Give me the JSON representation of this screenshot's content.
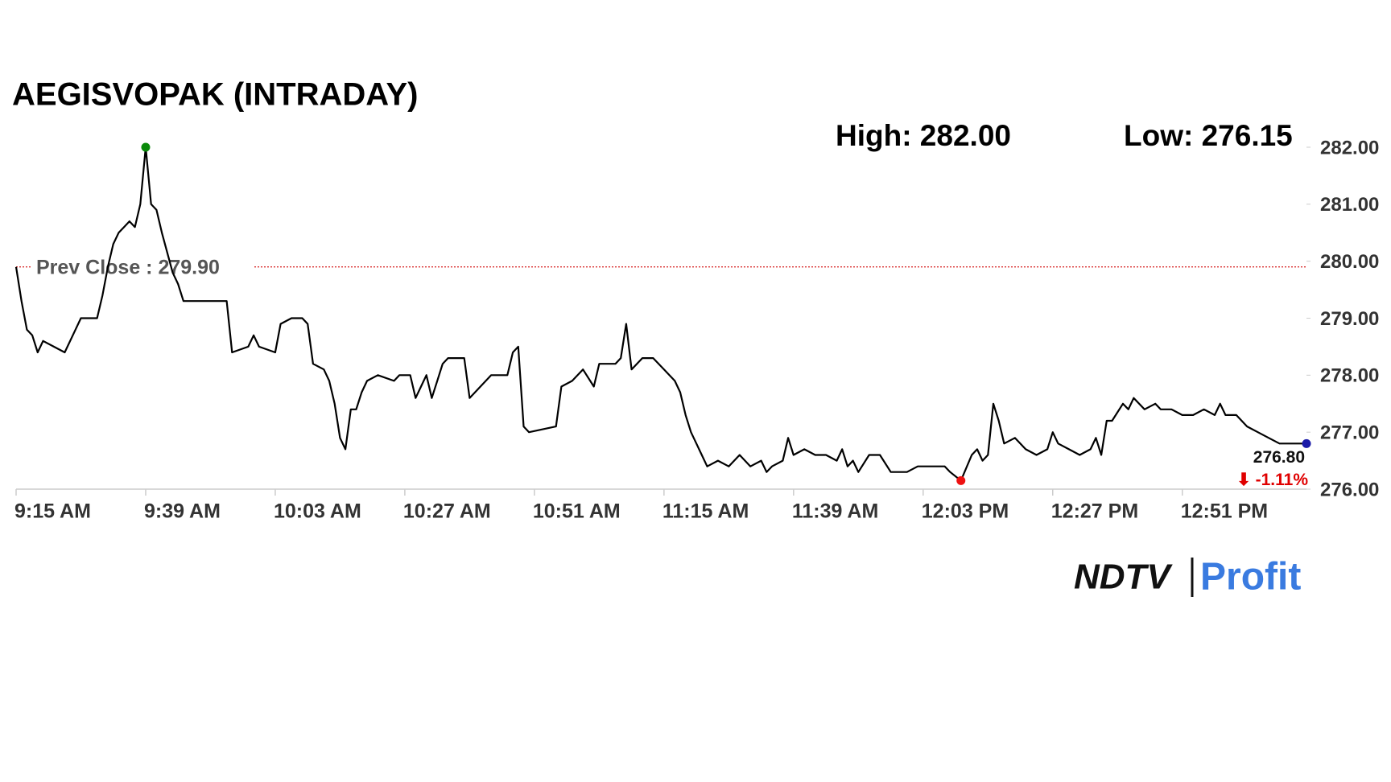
{
  "chart_data": {
    "type": "line",
    "title": "AEGISVOPAK (INTRADAY)",
    "high_label": "High: 282.00",
    "low_label": "Low: 276.15",
    "prev_close": 279.9,
    "prev_close_label": "Prev Close : 279.90",
    "prev_close_color": "#d62020",
    "last_label": "276.80",
    "change_label": "⬇ -1.11%",
    "change_color": "#e00000",
    "high_color": "#0a8a0a",
    "low_color": "#ee1111",
    "last_color": "#1a1aa8",
    "x": [
      "9:15 AM",
      "9:16 AM",
      "9:17 AM",
      "9:18 AM",
      "9:19 AM",
      "9:20 AM",
      "9:22 AM",
      "9:24 AM",
      "9:26 AM",
      "9:27 AM",
      "9:30 AM",
      "9:31 AM",
      "9:32 AM",
      "9:33 AM",
      "9:34 AM",
      "9:35 AM",
      "9:36 AM",
      "9:37 AM",
      "9:38 AM",
      "9:39 AM",
      "9:40 AM",
      "9:41 AM",
      "9:42 AM",
      "9:44 AM",
      "9:45 AM",
      "9:46 AM",
      "9:50 AM",
      "9:54 AM",
      "9:55 AM",
      "9:58 AM",
      "9:59 AM",
      "10:00 AM",
      "10:03 AM",
      "10:04 AM",
      "10:06 AM",
      "10:08 AM",
      "10:09 AM",
      "10:10 AM",
      "10:12 AM",
      "10:13 AM",
      "10:14 AM",
      "10:15 AM",
      "10:16 AM",
      "10:17 AM",
      "10:18 AM",
      "10:19 AM",
      "10:20 AM",
      "10:22 AM",
      "10:25 AM",
      "10:26 AM",
      "10:28 AM",
      "10:29 AM",
      "10:30 AM",
      "10:31 AM",
      "10:32 AM",
      "10:33 AM",
      "10:34 AM",
      "10:35 AM",
      "10:38 AM",
      "10:39 AM",
      "10:41 AM",
      "10:43 AM",
      "10:46 AM",
      "10:47 AM",
      "10:48 AM",
      "10:49 AM",
      "10:50 AM",
      "10:55 AM",
      "10:56 AM",
      "10:58 AM",
      "11:00 AM",
      "11:02 AM",
      "11:03 AM",
      "11:06 AM",
      "11:07 AM",
      "11:08 AM",
      "11:09 AM",
      "11:11 AM",
      "11:13 AM",
      "11:15 AM",
      "11:17 AM",
      "11:18 AM",
      "11:19 AM",
      "11:20 AM",
      "11:21 AM",
      "11:22 AM",
      "11:23 AM",
      "11:25 AM",
      "11:27 AM",
      "11:29 AM",
      "11:31 AM",
      "11:33 AM",
      "11:34 AM",
      "11:35 AM",
      "11:37 AM",
      "11:38 AM",
      "11:39 AM",
      "11:41 AM",
      "11:43 AM",
      "11:45 AM",
      "11:47 AM",
      "11:48 AM",
      "11:49 AM",
      "11:50 AM",
      "11:51 AM",
      "11:53 AM",
      "11:55 AM",
      "11:57 AM",
      "12:00 PM",
      "12:02 PM",
      "12:04 PM",
      "12:07 PM",
      "12:08 PM",
      "12:10 PM",
      "12:12 PM",
      "12:13 PM",
      "12:14 PM",
      "12:15 PM",
      "12:16 PM",
      "12:17 PM",
      "12:18 PM",
      "12:20 PM",
      "12:22 PM",
      "12:24 PM",
      "12:26 PM",
      "12:27 PM",
      "12:28 PM",
      "12:30 PM",
      "12:32 PM",
      "12:34 PM",
      "12:35 PM",
      "12:36 PM",
      "12:37 PM",
      "12:38 PM",
      "12:40 PM",
      "12:41 PM",
      "12:42 PM",
      "12:44 PM",
      "12:46 PM",
      "12:47 PM",
      "12:49 PM",
      "12:51 PM",
      "12:53 PM",
      "12:55 PM",
      "12:57 PM",
      "12:58 PM",
      "12:59 PM",
      "1:01 PM",
      "1:03 PM",
      "1:05 PM",
      "1:07 PM",
      "1:09 PM",
      "1:11 PM",
      "1:13 PM",
      "1:14 PM"
    ],
    "series": [
      {
        "name": "AEGISVOPAK",
        "color": "#000000",
        "values": [
          279.9,
          279.3,
          278.8,
          278.7,
          278.4,
          278.6,
          278.5,
          278.4,
          278.8,
          279.0,
          279.0,
          279.4,
          279.9,
          280.3,
          280.5,
          280.6,
          280.7,
          280.6,
          281.0,
          282.0,
          281.0,
          280.9,
          280.5,
          279.8,
          279.6,
          279.3,
          279.3,
          279.3,
          278.4,
          278.5,
          278.7,
          278.5,
          278.4,
          278.9,
          279.0,
          279.0,
          278.9,
          278.2,
          278.1,
          277.9,
          277.5,
          276.9,
          276.7,
          277.4,
          277.4,
          277.7,
          277.9,
          278.0,
          277.9,
          278.0,
          278.0,
          277.6,
          277.8,
          278.0,
          277.6,
          277.9,
          278.2,
          278.3,
          278.3,
          277.6,
          277.8,
          278.0,
          278.0,
          278.4,
          278.5,
          277.1,
          277.0,
          277.1,
          277.8,
          277.9,
          278.1,
          277.8,
          278.2,
          278.2,
          278.3,
          278.9,
          278.1,
          278.3,
          278.3,
          278.1,
          277.9,
          277.7,
          277.3,
          277.0,
          276.8,
          276.6,
          276.4,
          276.5,
          276.4,
          276.6,
          276.4,
          276.5,
          276.3,
          276.4,
          276.5,
          276.9,
          276.6,
          276.7,
          276.6,
          276.6,
          276.5,
          276.7,
          276.4,
          276.5,
          276.3,
          276.6,
          276.6,
          276.3,
          276.3,
          276.4,
          276.4,
          276.4,
          276.3,
          276.15,
          276.6,
          276.7,
          276.5,
          276.6,
          277.5,
          277.2,
          276.8,
          276.9,
          276.7,
          276.6,
          276.7,
          277.0,
          276.8,
          276.7,
          276.6,
          276.7,
          276.9,
          276.6,
          277.2,
          277.2,
          277.5,
          277.4,
          277.6,
          277.4,
          277.5,
          277.4,
          277.4,
          277.3,
          277.3,
          277.4,
          277.3,
          277.5,
          277.3,
          277.3,
          277.1,
          277.0,
          276.9,
          276.8,
          276.8,
          276.8,
          276.8
        ]
      }
    ],
    "xlim": [
      "9:15 AM",
      "1:14 PM"
    ],
    "xticks": [
      "9:15 AM",
      "9:39 AM",
      "10:03 AM",
      "10:27 AM",
      "10:51 AM",
      "11:15 AM",
      "11:39 AM",
      "12:03 PM",
      "12:27 PM",
      "12:51 PM"
    ],
    "ylim": [
      276,
      282
    ],
    "yticks": [
      {
        "value": 276,
        "label": "276.00"
      },
      {
        "value": 277,
        "label": "277.00"
      },
      {
        "value": 278,
        "label": "278.00"
      },
      {
        "value": 279,
        "label": "279.00"
      },
      {
        "value": 280,
        "label": "280.00"
      },
      {
        "value": 281,
        "label": "281.00"
      },
      {
        "value": 282,
        "label": "282.00"
      }
    ],
    "grid": false
  },
  "logo": {
    "left": "NDTV",
    "right": "Profit"
  }
}
